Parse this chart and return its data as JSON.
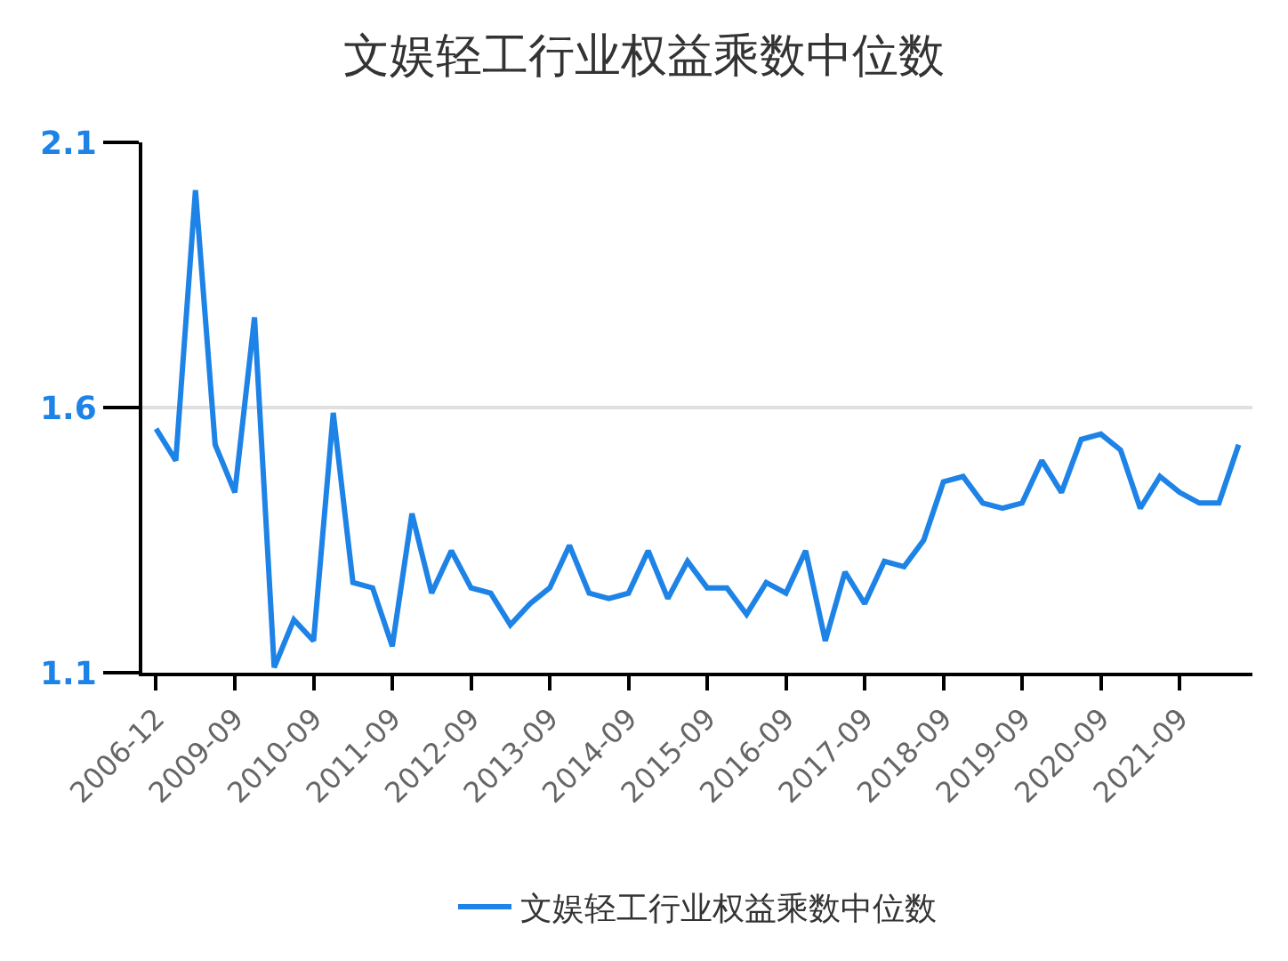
{
  "chart_data": {
    "type": "line",
    "title": "文娱轻工行业权益乘数中位数",
    "categories": [
      "2006-12",
      null,
      null,
      null,
      "2009-09",
      null,
      null,
      null,
      "2010-09",
      null,
      null,
      null,
      "2011-09",
      null,
      null,
      null,
      "2012-09",
      null,
      null,
      null,
      "2013-09",
      null,
      null,
      null,
      "2014-09",
      null,
      null,
      null,
      "2015-09",
      null,
      null,
      null,
      "2016-09",
      null,
      null,
      null,
      "2017-09",
      null,
      null,
      null,
      "2018-09",
      null,
      null,
      null,
      "2019-09",
      null,
      null,
      null,
      "2020-09",
      null,
      null,
      null,
      "2021-09",
      null,
      null,
      null
    ],
    "series": [
      {
        "name": "文娱轻工行业权益乘数中位数",
        "color": "#1e83e6",
        "values": [
          1.56,
          1.5,
          2.01,
          1.53,
          1.44,
          1.77,
          1.11,
          1.2,
          1.16,
          1.59,
          1.27,
          1.26,
          1.15,
          1.4,
          1.25,
          1.33,
          1.26,
          1.25,
          1.19,
          1.23,
          1.26,
          1.34,
          1.25,
          1.24,
          1.25,
          1.33,
          1.24,
          1.31,
          1.26,
          1.26,
          1.21,
          1.27,
          1.25,
          1.33,
          1.16,
          1.29,
          1.23,
          1.31,
          1.3,
          1.35,
          1.46,
          1.47,
          1.42,
          1.41,
          1.42,
          1.5,
          1.44,
          1.54,
          1.55,
          1.52,
          1.41,
          1.47,
          1.44,
          1.42,
          1.42,
          1.53
        ]
      }
    ],
    "ylim": [
      1.1,
      2.1
    ],
    "yticks": [
      1.1,
      1.6,
      2.1
    ],
    "grid": "y",
    "legend": "bottom",
    "marker": "none",
    "line_style": "solid"
  }
}
